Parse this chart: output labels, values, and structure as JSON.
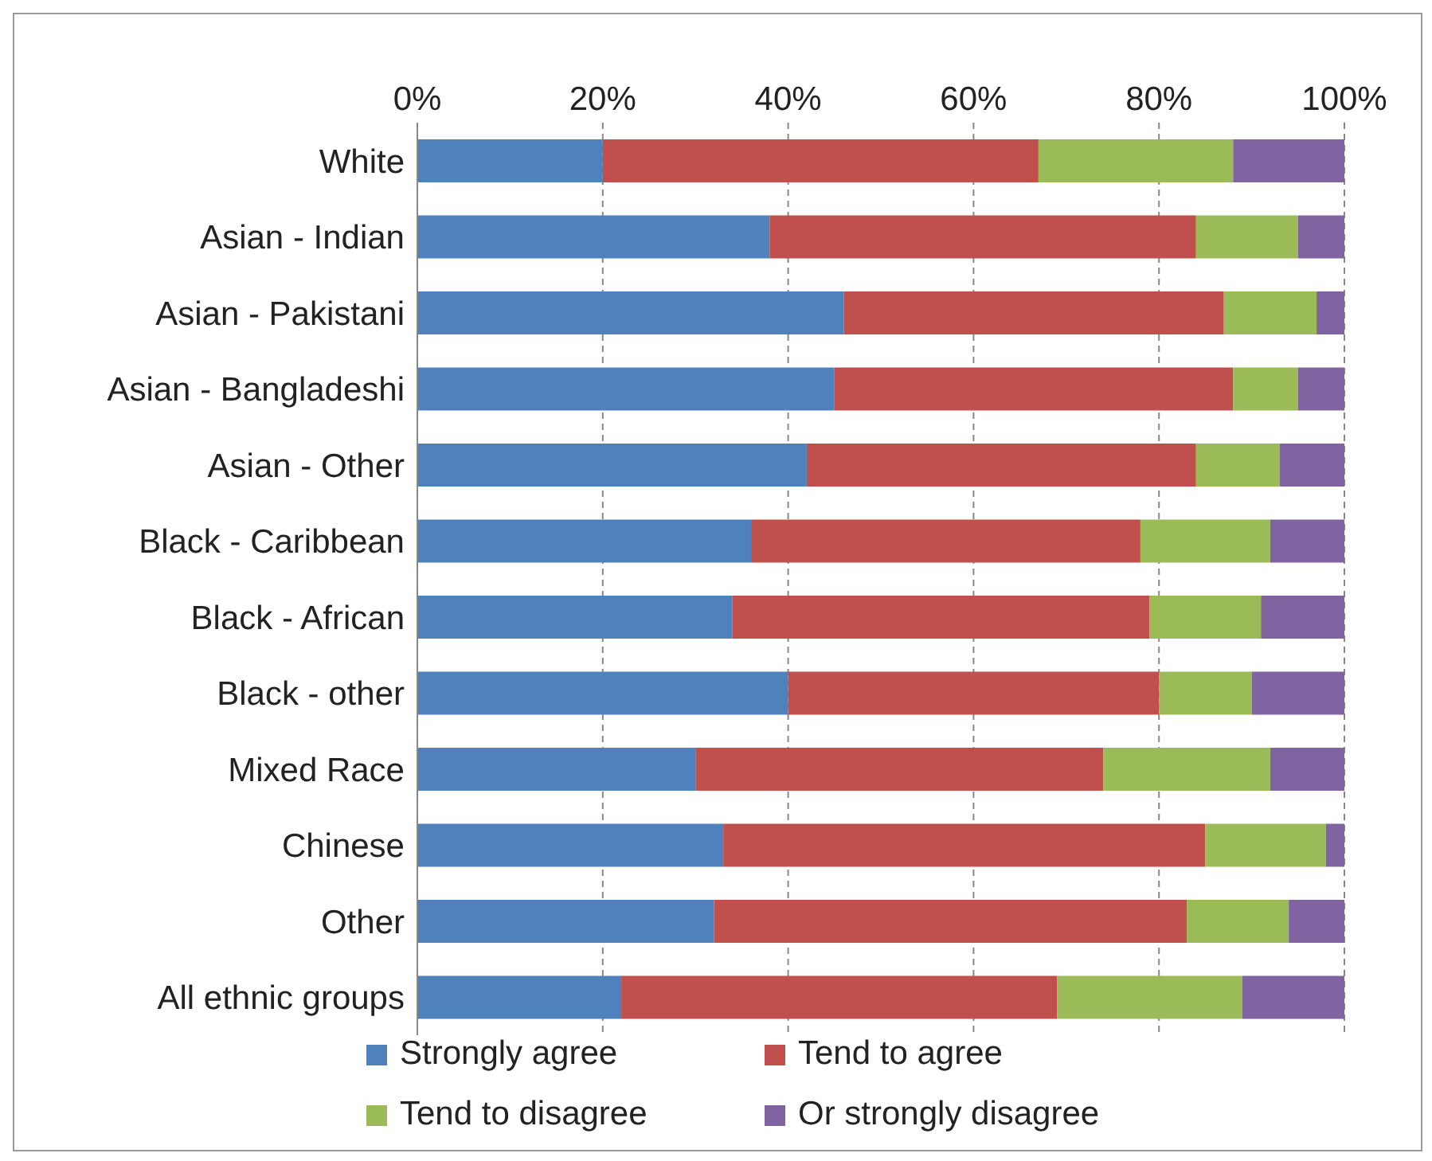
{
  "chart_data": {
    "type": "bar",
    "orientation": "horizontal",
    "stacked": true,
    "categories": [
      "White",
      "Asian - Indian",
      "Asian - Pakistani",
      "Asian - Bangladeshi",
      "Asian - Other",
      "Black - Caribbean",
      "Black - African",
      "Black - other",
      "Mixed Race",
      "Chinese",
      "Other",
      "All ethnic groups"
    ],
    "series": [
      {
        "name": "Strongly agree",
        "color": "#4f81bd",
        "values": [
          20,
          38,
          46,
          45,
          42,
          36,
          34,
          40,
          30,
          33,
          32,
          22
        ]
      },
      {
        "name": "Tend to agree",
        "color": "#c0504d",
        "values": [
          47,
          46,
          41,
          43,
          42,
          42,
          45,
          40,
          44,
          52,
          51,
          47
        ]
      },
      {
        "name": "Tend to disagree",
        "color": "#9bbb59",
        "values": [
          21,
          11,
          10,
          7,
          9,
          14,
          12,
          10,
          18,
          13,
          11,
          20
        ]
      },
      {
        "name": "Or strongly disagree",
        "color": "#8064a2",
        "values": [
          12,
          5,
          3,
          5,
          7,
          8,
          9,
          10,
          8,
          2,
          6,
          11
        ]
      }
    ],
    "xlim": [
      0,
      100
    ],
    "xticks": [
      {
        "value": 0,
        "label": "0%"
      },
      {
        "value": 20,
        "label": "20%"
      },
      {
        "value": 40,
        "label": "40%"
      },
      {
        "value": 60,
        "label": "60%"
      },
      {
        "value": 80,
        "label": "80%"
      },
      {
        "value": 100,
        "label": "100%"
      }
    ],
    "grid": "x",
    "legend": "bottom"
  }
}
